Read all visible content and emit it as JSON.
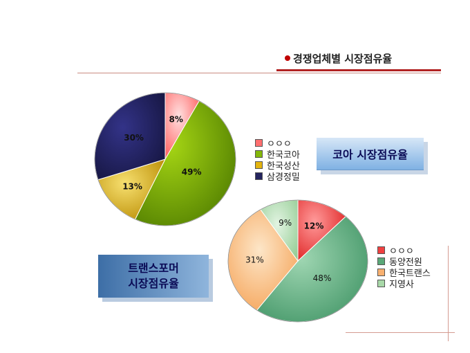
{
  "header": {
    "title": "경쟁업체별 시장점유율",
    "accent": "#c00000"
  },
  "callouts": {
    "core": "코아 시장점유율",
    "transformer_line1": "트랜스포머",
    "transformer_line2": "시장점유율"
  },
  "chart_data": [
    {
      "type": "pie",
      "categories": [
        "ㅇㅇㅇ",
        "한국코아",
        "한국성산",
        "삼경정밀"
      ],
      "values": [
        8,
        49,
        13,
        30
      ],
      "data_labels": [
        "8%",
        "49%",
        "13%",
        "30%"
      ],
      "colors": [
        "#ff6f6f",
        "#84b80a",
        "#e3b40f",
        "#24245e"
      ],
      "legend_placement": "right"
    },
    {
      "type": "pie",
      "categories": [
        "ㅇㅇㅇ",
        "동양전원",
        "한국트랜스",
        "지영사"
      ],
      "values": [
        12,
        48,
        31,
        9
      ],
      "data_labels": [
        "12%",
        "48%",
        "31%",
        "9%"
      ],
      "colors": [
        "#f04040",
        "#5aa878",
        "#f8b070",
        "#a8d8a8"
      ],
      "legend_placement": "right"
    }
  ]
}
